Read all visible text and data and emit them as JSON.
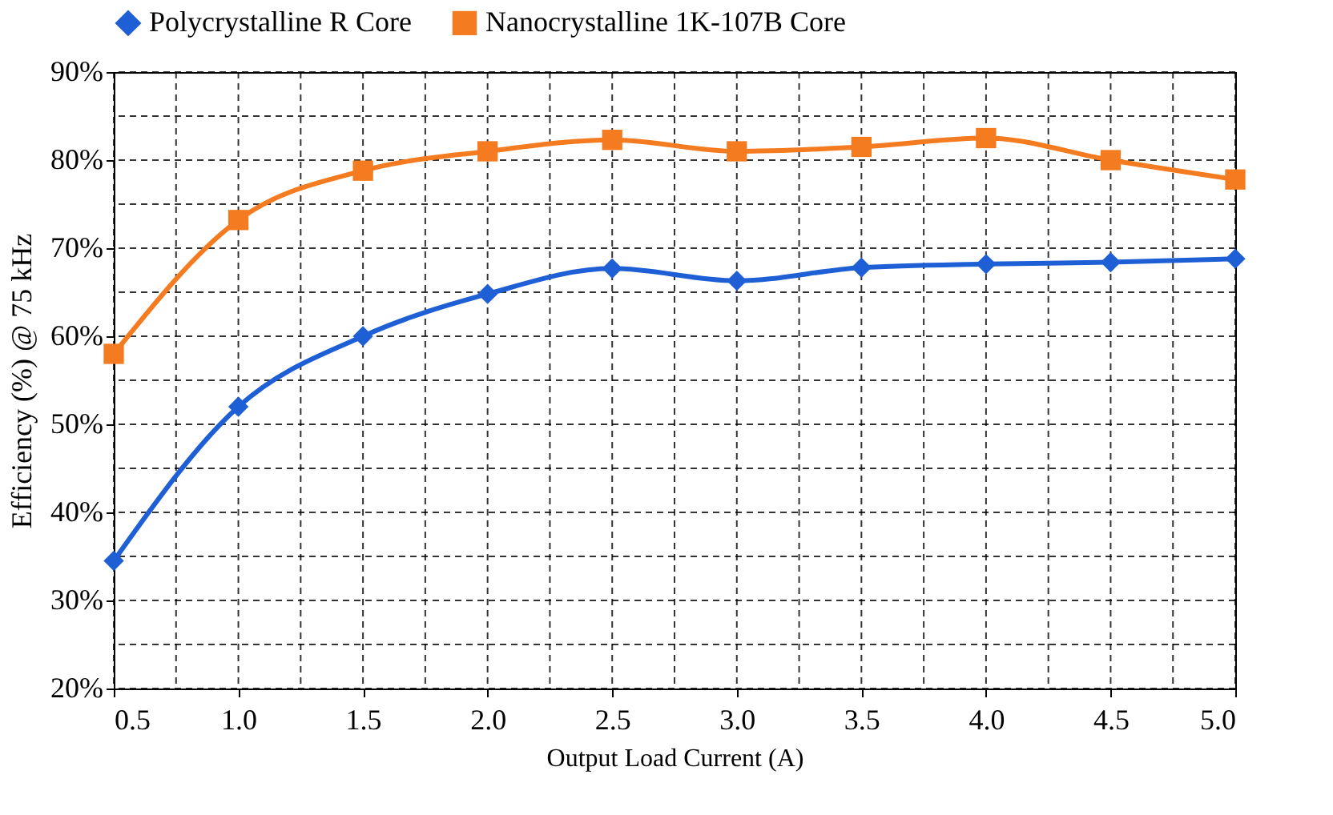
{
  "chart_data": {
    "type": "line",
    "xlabel": "Output Load Current (A)",
    "ylabel": "Efficiency (%) @ 75 kHz",
    "x": [
      0.5,
      1.0,
      1.5,
      2.0,
      2.5,
      3.0,
      3.5,
      4.0,
      4.5,
      5.0
    ],
    "series": [
      {
        "name": "Polycrystalline R Core",
        "color": "#1f5fd6",
        "marker": "diamond",
        "values": [
          34.5,
          52,
          60,
          64.8,
          67.7,
          66.3,
          67.8,
          68.2,
          68.4,
          68.8
        ]
      },
      {
        "name": "Nanocrystalline 1K-107B Core",
        "color": "#f47b20",
        "marker": "square",
        "values": [
          58,
          73.2,
          78.8,
          81,
          82.3,
          81,
          81.5,
          82.5,
          80,
          77.8
        ]
      }
    ],
    "xlim": [
      0.5,
      5.0
    ],
    "xticks": [
      {
        "value": 0.5,
        "label": "0.5"
      },
      {
        "value": 0.75,
        "label": null
      },
      {
        "value": 1.0,
        "label": "1.0"
      },
      {
        "value": 1.25,
        "label": null
      },
      {
        "value": 1.5,
        "label": "1.5"
      },
      {
        "value": 1.75,
        "label": null
      },
      {
        "value": 2.0,
        "label": "2.0"
      },
      {
        "value": 2.25,
        "label": null
      },
      {
        "value": 2.5,
        "label": "2.5"
      },
      {
        "value": 2.75,
        "label": null
      },
      {
        "value": 3.0,
        "label": "3.0"
      },
      {
        "value": 3.25,
        "label": null
      },
      {
        "value": 3.5,
        "label": "3.5"
      },
      {
        "value": 3.75,
        "label": null
      },
      {
        "value": 4.0,
        "label": "4.0"
      },
      {
        "value": 4.25,
        "label": null
      },
      {
        "value": 4.5,
        "label": "4.5"
      },
      {
        "value": 4.75,
        "label": null
      },
      {
        "value": 5.0,
        "label": "5.0"
      }
    ],
    "ylim": [
      20,
      90
    ],
    "yticks": [
      {
        "value": 20,
        "label": "20%"
      },
      {
        "value": 25,
        "label": null
      },
      {
        "value": 30,
        "label": "30%"
      },
      {
        "value": 35,
        "label": null
      },
      {
        "value": 40,
        "label": "40%"
      },
      {
        "value": 45,
        "label": null
      },
      {
        "value": 50,
        "label": "50%"
      },
      {
        "value": 55,
        "label": null
      },
      {
        "value": 60,
        "label": "60%"
      },
      {
        "value": 65,
        "label": null
      },
      {
        "value": 70,
        "label": "70%"
      },
      {
        "value": 75,
        "label": null
      },
      {
        "value": 80,
        "label": "80%"
      },
      {
        "value": 85,
        "label": null
      },
      {
        "value": 90,
        "label": "90%"
      }
    ],
    "grid": true,
    "legend": "top",
    "line_style": "solid"
  }
}
